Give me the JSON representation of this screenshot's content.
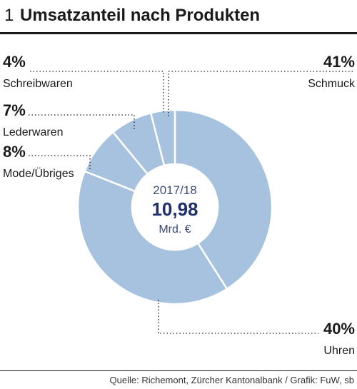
{
  "header": {
    "number": "1",
    "title": "Umsatzanteil nach Produkten"
  },
  "center": {
    "year": "2017/18",
    "value": "10,98",
    "unit": "Mrd. €"
  },
  "source": "Quelle: Richemont, Zürcher Kantonalbank / Grafik: FuW, sb",
  "colors": {
    "slice": "#a7c2de",
    "separator": "#ffffff",
    "center_text": "#1f2f6e"
  },
  "chart_data": {
    "type": "pie",
    "variant": "donut",
    "title": "Umsatzanteil nach Produkten",
    "unit": "%",
    "slices": [
      {
        "label": "Schmuck",
        "value": 41,
        "display": "41%"
      },
      {
        "label": "Uhren",
        "value": 40,
        "display": "40%"
      },
      {
        "label": "Mode/Übriges",
        "value": 8,
        "display": "8%"
      },
      {
        "label": "Lederwaren",
        "value": 7,
        "display": "7%"
      },
      {
        "label": "Schreibwaren",
        "value": 4,
        "display": "4%"
      }
    ]
  }
}
